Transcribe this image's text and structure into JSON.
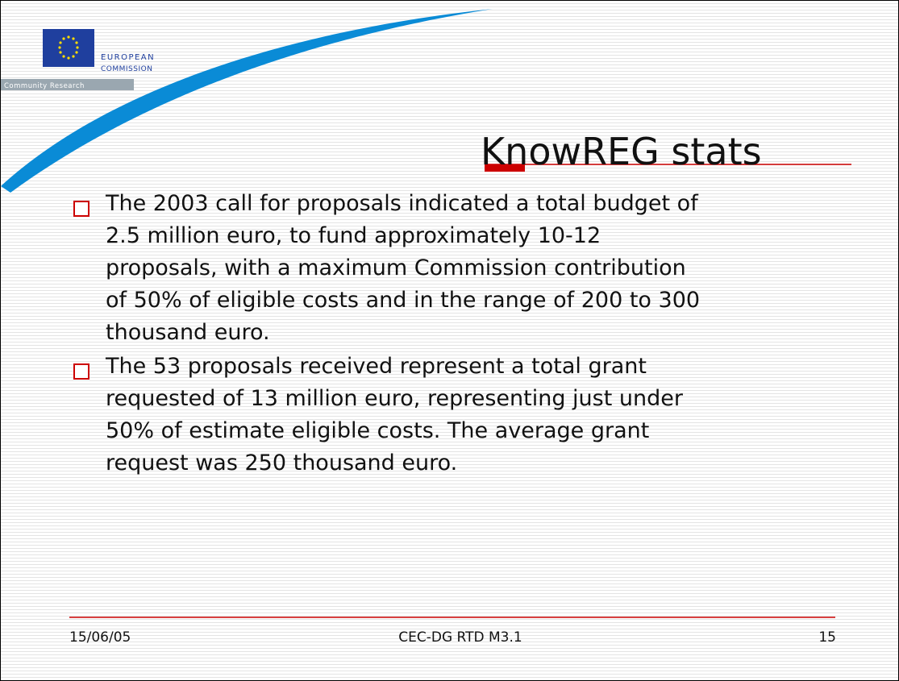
{
  "logo": {
    "name_line1": "EUROPEAN",
    "name_line2": "COMMISSION",
    "band": "Community Research"
  },
  "title": "KnowREG stats",
  "bullets": [
    {
      "lines": [
        "The 2003 call for proposals indicated a total budget of",
        "2.5 million euro, to fund approximately 10-12",
        "proposals, with a maximum Commission contribution",
        "of 50% of eligible costs and in the range of 200 to 300",
        "thousand euro."
      ]
    },
    {
      "lines": [
        "The 53 proposals received represent a total grant",
        "requested of 13 million euro, representing just under",
        "50% of estimate eligible costs. The average grant",
        "request was 250 thousand euro."
      ]
    }
  ],
  "footer": {
    "date": "15/06/05",
    "center": "CEC-DG RTD M3.1",
    "page": "15"
  }
}
